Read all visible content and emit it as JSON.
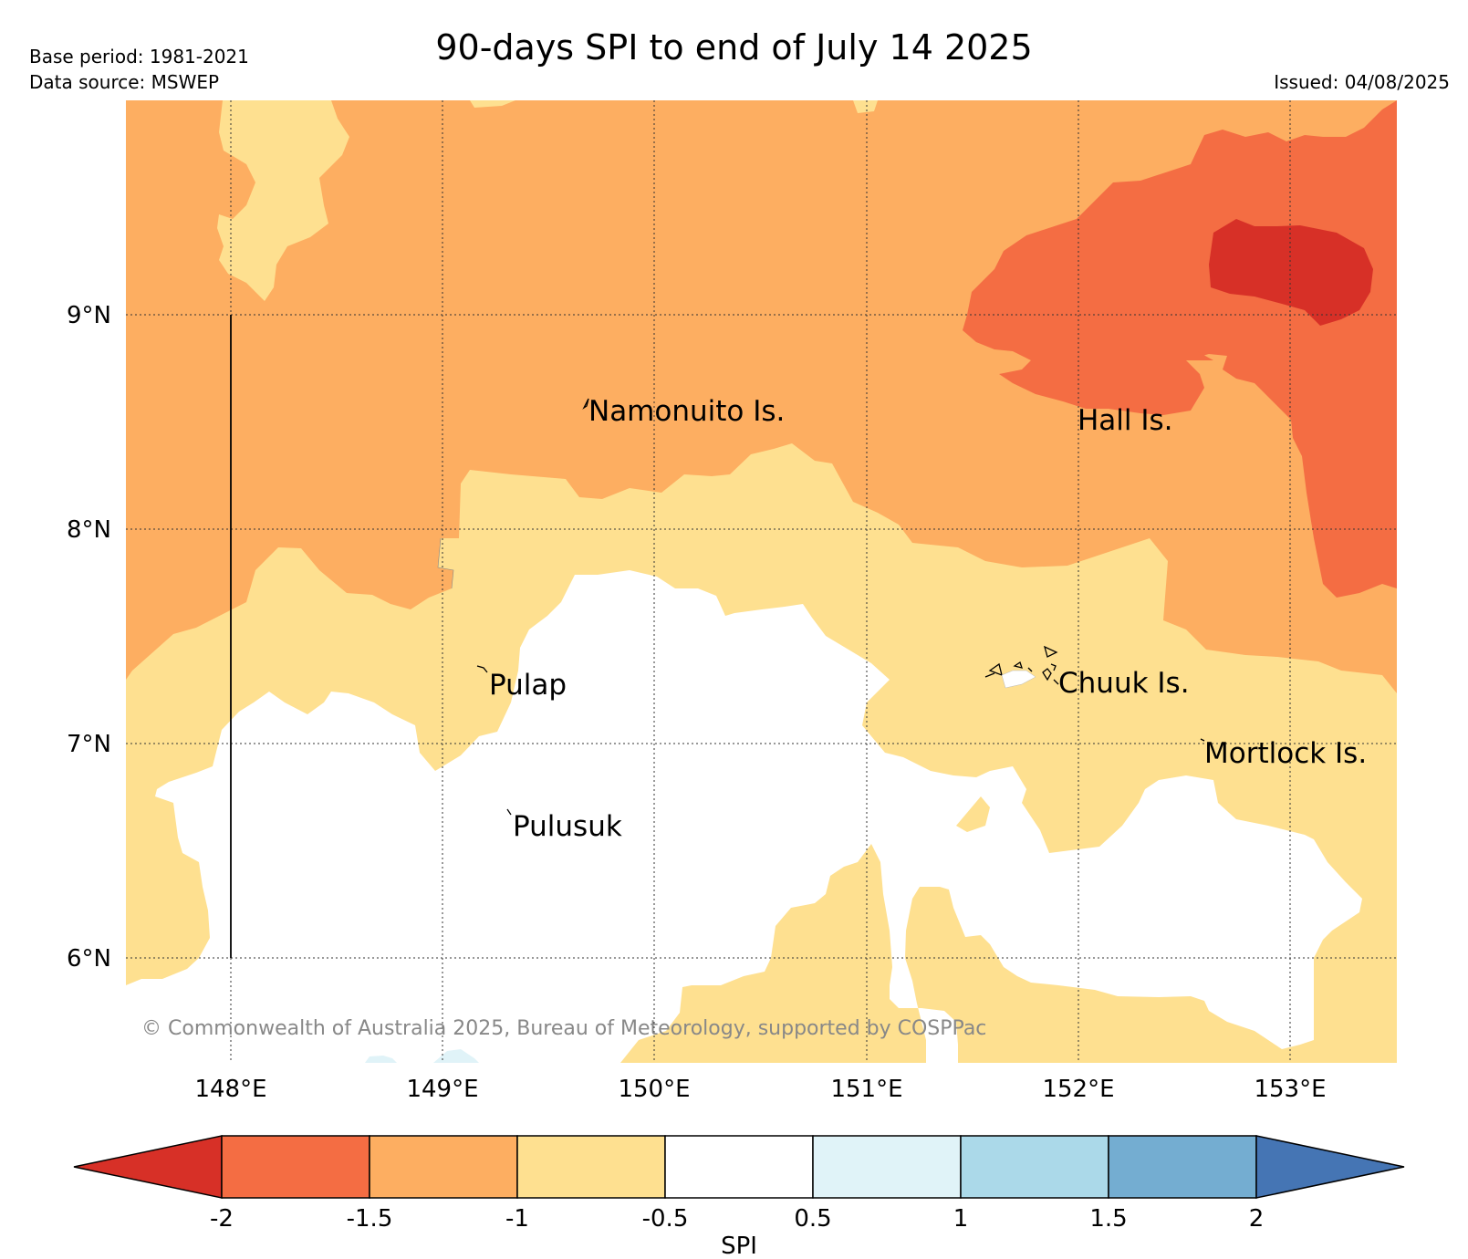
{
  "header": {
    "title": "90-days SPI to end of July 14 2025",
    "base_period": "Base period: 1981-2021",
    "data_source": "Data source: MSWEP",
    "issued": "Issued: 04/08/2025"
  },
  "map": {
    "lat_labels": [
      "9°N",
      "8°N",
      "7°N",
      "6°N"
    ],
    "lon_labels": [
      "148°E",
      "149°E",
      "150°E",
      "151°E",
      "152°E",
      "153°E"
    ],
    "places": [
      "Namonuito Is.",
      "Hall Is.",
      "Pulap",
      "Chuuk Is.",
      "Mortlock Is.",
      "Pulusuk"
    ],
    "copyright": "© Commonwealth of Australia 2025, Bureau of Meteorology, supported by COSPPac"
  },
  "colorbar": {
    "label": "SPI",
    "ticks": [
      "-2",
      "-1.5",
      "-1",
      "-0.5",
      "0.5",
      "1",
      "1.5",
      "2"
    ],
    "colors": {
      "below_-2": "#d73027",
      "-2_-1.5": "#f46d43",
      "-1.5_-1": "#fdae61",
      "-1_-0.5": "#fee090",
      "-0.5_0.5": "#ffffff",
      "0.5_1": "#e0f3f8",
      "1_1.5": "#abd9e9",
      "1.5_2": "#74add1",
      "above_2": "#4575b4"
    }
  }
}
